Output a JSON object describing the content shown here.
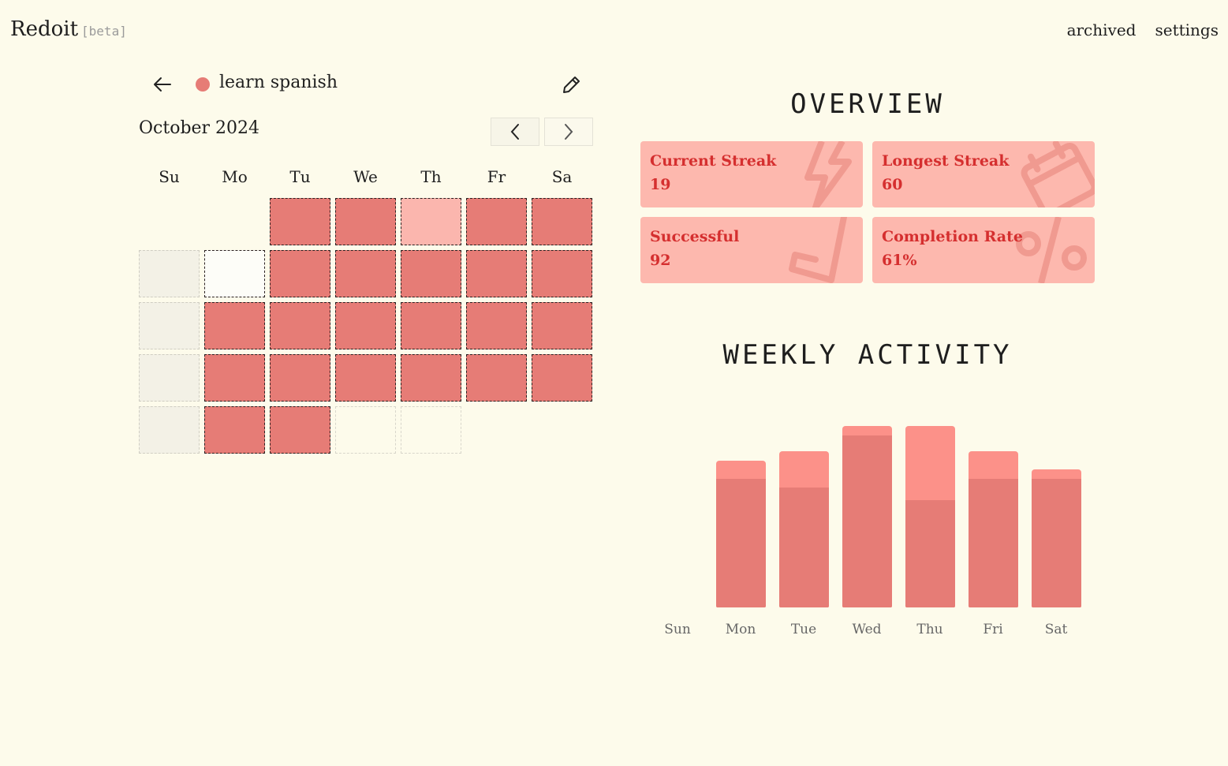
{
  "app": {
    "name": "Redoit",
    "badge": "[beta]"
  },
  "nav": {
    "archived": "archived",
    "settings": "settings"
  },
  "habit": {
    "name": "learn spanish",
    "color": "#e67c76"
  },
  "calendar": {
    "month_label": "October 2024",
    "weekdays": [
      "Su",
      "Mo",
      "Tu",
      "We",
      "Th",
      "Fr",
      "Sa"
    ],
    "rows": [
      [
        "empty",
        "empty",
        "done",
        "done",
        "partial",
        "done",
        "done"
      ],
      [
        "inactive",
        "today",
        "done",
        "done",
        "done",
        "done",
        "done"
      ],
      [
        "inactive",
        "done",
        "done",
        "done",
        "done",
        "done",
        "done"
      ],
      [
        "inactive",
        "done",
        "done",
        "done",
        "done",
        "done",
        "done"
      ],
      [
        "inactive",
        "done",
        "done",
        "future",
        "future",
        "empty",
        "empty"
      ]
    ]
  },
  "overview": {
    "title": "OVERVIEW",
    "stats": [
      {
        "label": "Current Streak",
        "value": "19",
        "icon": "lightning-icon"
      },
      {
        "label": "Longest Streak",
        "value": "60",
        "icon": "calendar-icon"
      },
      {
        "label": "Successful",
        "value": "92",
        "icon": "check-icon"
      },
      {
        "label": "Completion Rate",
        "value": "61%",
        "icon": "percent-icon"
      }
    ]
  },
  "weekly": {
    "title": "WEEKLY ACTIVITY",
    "chart_data": {
      "type": "bar",
      "categories": [
        "Sun",
        "Mon",
        "Tue",
        "Wed",
        "Thu",
        "Fri",
        "Sat"
      ],
      "series": [
        {
          "values": [
            0,
            0.71,
            0.66,
            0.95,
            0.59,
            0.71,
            0.71
          ]
        },
        {
          "values": [
            0,
            0.81,
            0.86,
            1.0,
            1.0,
            0.86,
            0.76
          ]
        }
      ],
      "colors": [
        "#e67c76",
        "#fc9189"
      ]
    }
  }
}
